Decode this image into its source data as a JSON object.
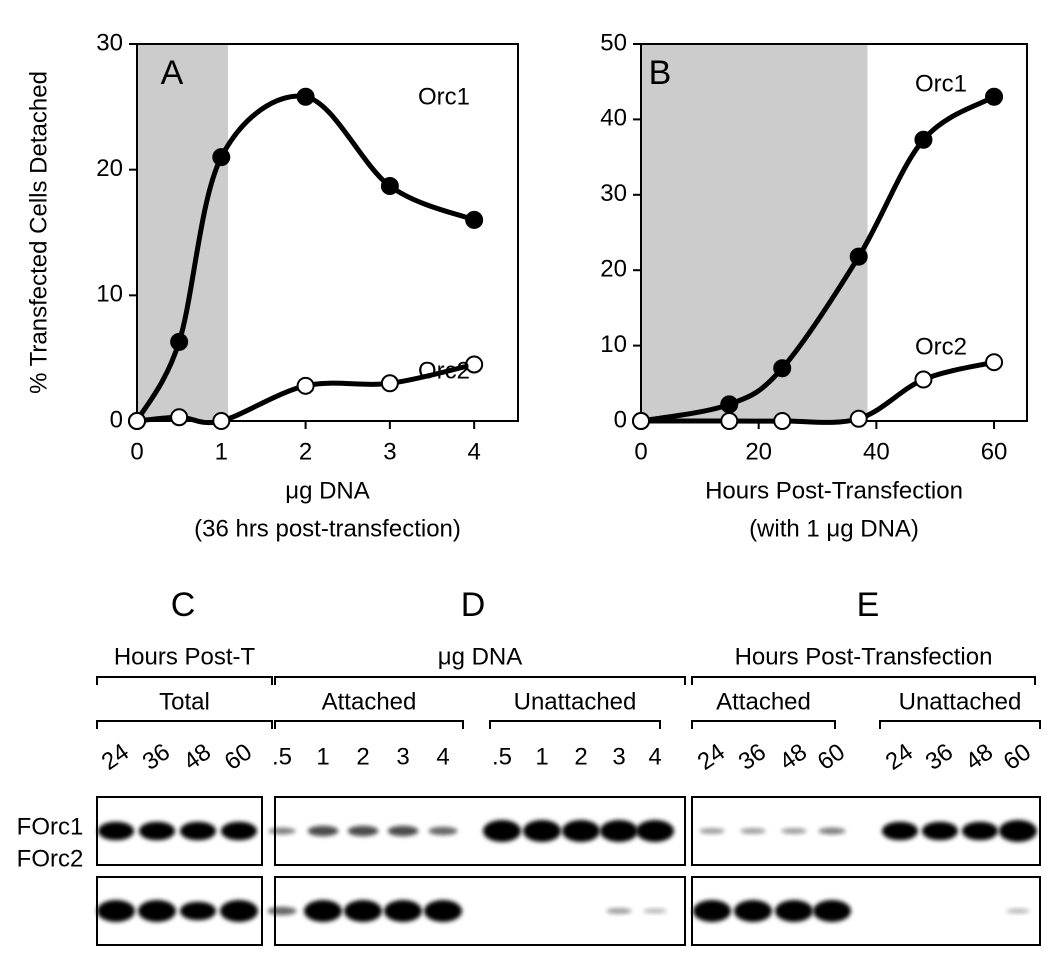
{
  "chart_data": [
    {
      "type": "line",
      "panel": "A",
      "ylabel": "% Transfected Cells Detached",
      "xlabel": [
        "μg DNA",
        "(36 hrs post-transfection)"
      ],
      "xlim": [
        0,
        4.52
      ],
      "ylim": [
        0,
        30
      ],
      "xticks": [
        0,
        1,
        2,
        3,
        4
      ],
      "yticks": [
        0,
        10,
        20,
        30
      ],
      "shaded_xrange": [
        0,
        1.08
      ],
      "x": [
        0,
        0.5,
        1,
        2,
        3,
        4
      ],
      "series": [
        {
          "name": "Orc1",
          "color": "#000000",
          "marker": "filled",
          "values": [
            0,
            6.3,
            21,
            25.8,
            18.7,
            16
          ]
        },
        {
          "name": "Orc2",
          "color": "#000000",
          "marker": "open",
          "values": [
            0,
            0.3,
            0,
            2.8,
            3,
            4.5
          ]
        }
      ]
    },
    {
      "type": "line",
      "panel": "B",
      "xlabel": [
        "Hours Post-Transfection",
        "(with 1 μg DNA)"
      ],
      "xlim": [
        0,
        65.6
      ],
      "ylim": [
        0,
        50
      ],
      "xticks": [
        0,
        20,
        40,
        60
      ],
      "yticks": [
        0,
        10,
        20,
        30,
        40,
        50
      ],
      "shaded_xrange": [
        0,
        38.5
      ],
      "x": [
        0,
        15,
        24,
        37,
        48,
        60
      ],
      "series": [
        {
          "name": "Orc1",
          "color": "#000000",
          "marker": "filled",
          "values": [
            0,
            2.2,
            7,
            21.8,
            37.3,
            43
          ]
        },
        {
          "name": "Orc2",
          "color": "#000000",
          "marker": "open",
          "values": [
            0,
            0,
            0,
            0.3,
            5.5,
            7.8
          ]
        }
      ]
    }
  ],
  "blots": {
    "row_labels": [
      "FOrc1",
      "FOrc2"
    ],
    "panels": [
      {
        "letter": "C",
        "header": "Hours Post-T",
        "groups": [
          {
            "name": "Total",
            "lanes": [
              "24",
              "36",
              "48",
              "60"
            ]
          }
        ]
      },
      {
        "letter": "D",
        "header": "μg DNA",
        "groups": [
          {
            "name": "Attached",
            "lanes": [
              ".5",
              "1",
              "2",
              "3",
              "4"
            ]
          },
          {
            "name": "Unattached",
            "lanes": [
              ".5",
              "1",
              "2",
              "3",
              "4"
            ]
          }
        ]
      },
      {
        "letter": "E",
        "header": "Hours Post-Transfection",
        "groups": [
          {
            "name": "Attached",
            "lanes": [
              "24",
              "36",
              "48",
              "60"
            ]
          },
          {
            "name": "Unattached",
            "lanes": [
              "24",
              "36",
              "48",
              "60"
            ]
          }
        ]
      }
    ]
  }
}
